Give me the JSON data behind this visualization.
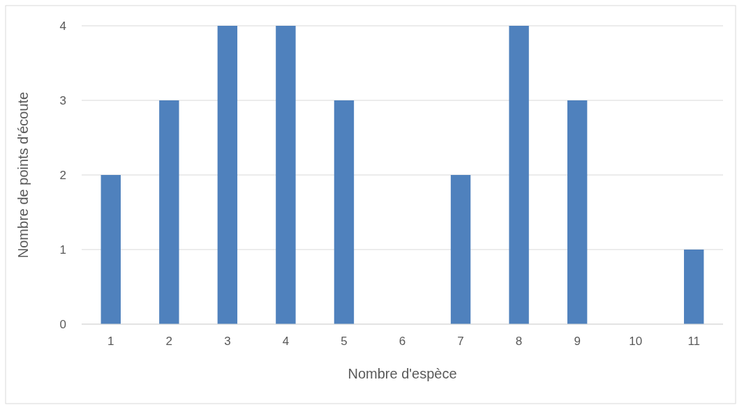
{
  "chart_data": {
    "type": "bar",
    "xlabel": "Nombre d'espèce",
    "ylabel": "Nombre de points d'écoute",
    "categories": [
      "1",
      "2",
      "3",
      "4",
      "5",
      "6",
      "7",
      "8",
      "9",
      "10",
      "11"
    ],
    "values": [
      2,
      3,
      4,
      4,
      3,
      0,
      2,
      4,
      3,
      0,
      1
    ],
    "color": "#4f81bd",
    "ylim": [
      0,
      4
    ],
    "yticks": [
      0,
      1,
      2,
      3,
      4
    ],
    "grid": "y"
  }
}
